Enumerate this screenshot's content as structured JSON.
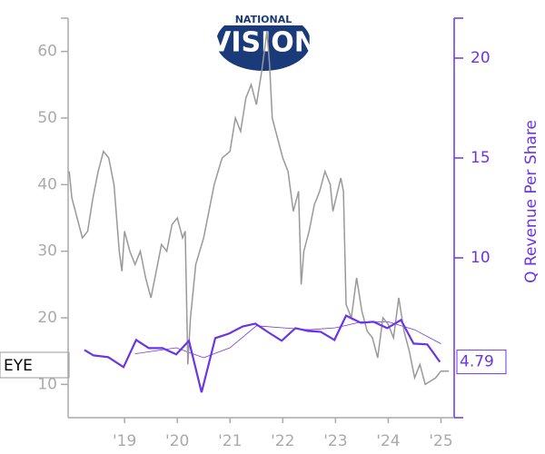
{
  "chart_data": {
    "type": "line",
    "logo": [
      "NATIONAL",
      "VISION"
    ],
    "ticker": "EYE",
    "y2label": "Q Revenue Per Share",
    "xlim": [
      2017.93,
      2025.25
    ],
    "xticks": [
      {
        "value": 2019,
        "label": "'19"
      },
      {
        "value": 2020,
        "label": "'20"
      },
      {
        "value": 2021,
        "label": "'21"
      },
      {
        "value": 2022,
        "label": "'22"
      },
      {
        "value": 2023,
        "label": "'23"
      },
      {
        "value": 2024,
        "label": "'24"
      },
      {
        "value": 2025,
        "label": "'25"
      }
    ],
    "ylim": [
      5,
      65
    ],
    "yticks": [
      10,
      20,
      30,
      40,
      50,
      60
    ],
    "y2lim": [
      2,
      22
    ],
    "y2ticks": [
      10,
      15,
      20
    ],
    "axis_color": "#aaaaaa",
    "axis2_color": "#6a35e6",
    "series": [
      {
        "color": "#999999",
        "axis": "y",
        "x": [
          2017.95,
          2018.0,
          2018.1,
          2018.2,
          2018.3,
          2018.4,
          2018.5,
          2018.6,
          2018.7,
          2018.8,
          2018.9,
          2018.95,
          2019.0,
          2019.1,
          2019.2,
          2019.3,
          2019.4,
          2019.5,
          2019.6,
          2019.7,
          2019.8,
          2019.9,
          2020.0,
          2020.1,
          2020.15,
          2020.2,
          2020.25,
          2020.35,
          2020.5,
          2020.6,
          2020.7,
          2020.85,
          2021.0,
          2021.1,
          2021.2,
          2021.3,
          2021.4,
          2021.5,
          2021.6,
          2021.7,
          2021.75,
          2021.8,
          2021.9,
          2022.0,
          2022.1,
          2022.2,
          2022.3,
          2022.35,
          2022.4,
          2022.5,
          2022.6,
          2022.7,
          2022.8,
          2022.9,
          2022.95,
          2023.1,
          2023.15,
          2023.2,
          2023.3,
          2023.4,
          2023.5,
          2023.6,
          2023.7,
          2023.8,
          2023.9,
          2024.0,
          2024.1,
          2024.2,
          2024.3,
          2024.4,
          2024.5,
          2024.6,
          2024.7,
          2024.8,
          2024.9,
          2025.0,
          2025.15
        ],
        "values": [
          42,
          38,
          35,
          32,
          33,
          38,
          42,
          45,
          44,
          40,
          30,
          27,
          33,
          30,
          28,
          30,
          26,
          23,
          27,
          31,
          30,
          34,
          35,
          32,
          33,
          13,
          20,
          28,
          32,
          36,
          40,
          44,
          45,
          50,
          48,
          53,
          55,
          52,
          57,
          63,
          58,
          50,
          47,
          44,
          42,
          36,
          39,
          25,
          30,
          33,
          37,
          39,
          42,
          40,
          36,
          41,
          39,
          22,
          20,
          26,
          21,
          18,
          17,
          14,
          20,
          19,
          17,
          23,
          18,
          15,
          11,
          13,
          10,
          10.5,
          11,
          12,
          12
        ]
      },
      {
        "color": "#6a35e6",
        "axis": "y2",
        "x": [
          2018.24,
          2018.41,
          2018.69,
          2018.98,
          2019.22,
          2019.46,
          2019.72,
          2019.98,
          2020.22,
          2020.46,
          2020.72,
          2020.98,
          2021.24,
          2021.48,
          2021.74,
          2021.98,
          2022.24,
          2022.48,
          2022.72,
          2022.98,
          2023.2,
          2023.48,
          2023.72,
          2023.98,
          2024.24,
          2024.48,
          2024.74,
          2024.98
        ],
        "values": [
          5.39,
          5.12,
          5.03,
          4.53,
          5.89,
          5.48,
          5.48,
          5.17,
          5.85,
          3.27,
          5.98,
          6.21,
          6.57,
          6.71,
          6.25,
          5.85,
          6.48,
          6.34,
          6.3,
          5.89,
          7.11,
          6.75,
          6.8,
          6.48,
          6.89,
          5.71,
          5.67,
          4.79
        ]
      }
    ],
    "trend": {
      "color": "#6a35e6",
      "axis": "y2",
      "x": [
        2019.2,
        2019.98,
        2020.5,
        2021.0,
        2021.5,
        2022.0,
        2022.5,
        2023.0,
        2023.5,
        2024.0,
        2024.5,
        2025.0
      ],
      "values": [
        5.2,
        5.5,
        5.0,
        5.5,
        6.6,
        6.5,
        6.4,
        6.5,
        6.8,
        6.8,
        6.4,
        5.7
      ]
    }
  }
}
